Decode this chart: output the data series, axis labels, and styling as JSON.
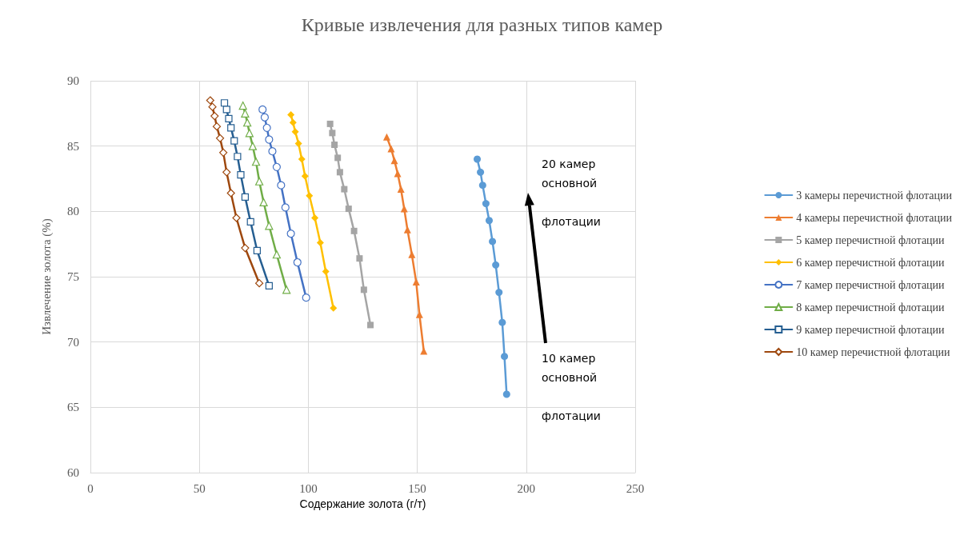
{
  "chart_data": {
    "type": "line",
    "title": "Кривые извлечения для разных типов камер",
    "xlabel": "Содержание золота (г/т)",
    "ylabel": "Извлечение золота (%)",
    "xlim": [
      0,
      250
    ],
    "xticks": [
      0,
      50,
      100,
      150,
      200,
      250
    ],
    "ylim": [
      60,
      90
    ],
    "yticks": [
      60,
      65,
      70,
      75,
      80,
      85,
      90
    ],
    "grid": true,
    "legend": "right",
    "annotations": [
      "20 камер основной флотации",
      "10 камер основной флотации"
    ],
    "series": [
      {
        "name": "3 камеры перечистной флотации",
        "color": "#5b9bd5",
        "marker": "circle",
        "x": [
          177.5,
          179,
          180,
          181.5,
          183,
          184.5,
          186,
          187.5,
          189,
          190,
          191
        ],
        "values": [
          84,
          83,
          82,
          80.6,
          79.3,
          77.7,
          75.9,
          73.8,
          71.5,
          68.9,
          66
        ]
      },
      {
        "name": "4 камеры перечистной флотации",
        "color": "#ed7d31",
        "marker": "triangle",
        "x": [
          136,
          138,
          139.5,
          141,
          142.5,
          144,
          145.5,
          147.5,
          149.5,
          151,
          153
        ],
        "values": [
          85.7,
          84.8,
          83.9,
          82.9,
          81.7,
          80.2,
          78.6,
          76.7,
          74.6,
          72.1,
          69.3
        ]
      },
      {
        "name": "5 камер перечистной флотации",
        "color": "#a5a5a5",
        "marker": "square",
        "x": [
          110,
          111,
          112,
          113.5,
          114.5,
          116.5,
          118.5,
          121,
          123.5,
          125.5,
          128.5
        ],
        "values": [
          86.7,
          86,
          85.1,
          84.1,
          83,
          81.7,
          80.2,
          78.5,
          76.4,
          74,
          71.3
        ]
      },
      {
        "name": "6 камер перечистной флотации",
        "color": "#ffc000",
        "marker": "diamond",
        "x": [
          92,
          93,
          94,
          95.5,
          97,
          98.5,
          100.5,
          103,
          105.5,
          108,
          111.5
        ],
        "values": [
          87.4,
          86.8,
          86.1,
          85.2,
          84,
          82.7,
          81.2,
          79.5,
          77.6,
          75.4,
          72.6
        ]
      },
      {
        "name": "7 камер перечистной флотации",
        "color": "#4472c4",
        "marker": "circle",
        "x": [
          79,
          80,
          81,
          82,
          83.5,
          85.5,
          87.5,
          89.5,
          92,
          95,
          99
        ],
        "values": [
          87.8,
          87.2,
          86.4,
          85.5,
          84.6,
          83.4,
          82,
          80.3,
          78.3,
          76.1,
          73.4
        ]
      },
      {
        "name": "8 камер перечистной флотации",
        "color": "#70ad47",
        "marker": "triangle",
        "x": [
          70,
          71,
          72,
          73,
          74.5,
          76,
          77.5,
          79.5,
          82,
          85.5,
          90
        ],
        "values": [
          88.1,
          87.5,
          86.8,
          86,
          85,
          83.8,
          82.3,
          80.7,
          78.9,
          76.7,
          74
        ]
      },
      {
        "name": "9 камер перечистной флотации",
        "color": "#255e91",
        "marker": "square",
        "x": [
          61.5,
          62.5,
          63.5,
          64.5,
          66,
          67.5,
          69,
          71,
          73.5,
          76.5,
          82
        ],
        "values": [
          88.3,
          87.8,
          87.1,
          86.4,
          85.4,
          84.2,
          82.8,
          81.1,
          79.2,
          77,
          74.3
        ]
      },
      {
        "name": "10 камер перечистной флотации",
        "color": "#9e480e",
        "marker": "diamond",
        "x": [
          55,
          56,
          57,
          58,
          59.5,
          61,
          62.5,
          64.5,
          67,
          71,
          77.5
        ],
        "values": [
          88.5,
          88,
          87.3,
          86.5,
          85.6,
          84.5,
          83,
          81.4,
          79.5,
          77.2,
          74.5
        ]
      }
    ]
  }
}
